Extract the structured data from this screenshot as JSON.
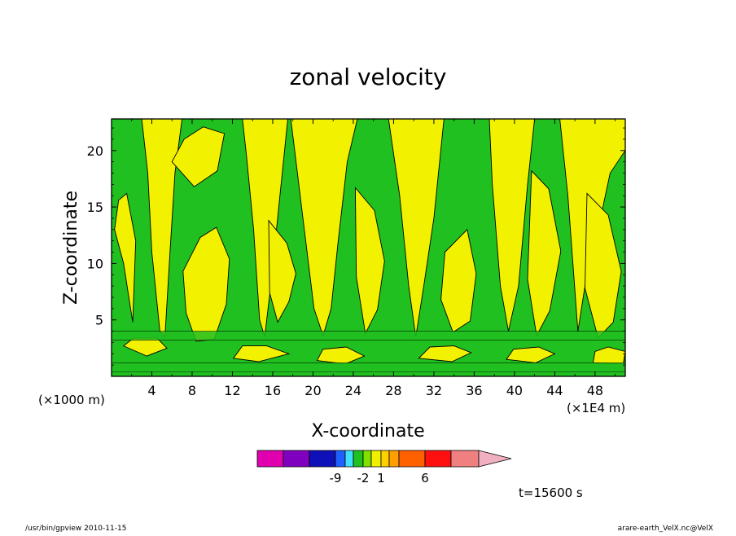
{
  "chart_data": {
    "type": "heatmap",
    "title": "zonal velocity",
    "xlabel": "X-coordinate",
    "ylabel": "Z-coordinate",
    "x_unit_left": "(×1000 m)",
    "x_unit_right": "(×1E4 m)",
    "x_ticks": [
      4,
      8,
      12,
      16,
      20,
      24,
      28,
      32,
      36,
      40,
      44,
      48
    ],
    "y_ticks": [
      5,
      10,
      15,
      20
    ],
    "xlim": [
      0,
      51
    ],
    "ylim": [
      0,
      22.8
    ],
    "contour_fields": {
      "fill": "#f2f200",
      "upper_green_patches": [
        [
          0,
          22.8,
          3,
          22.8,
          3.6,
          18,
          4,
          11,
          4.8,
          4,
          5.3,
          3.5,
          5.8,
          11,
          6.3,
          18,
          7,
          22.8,
          13,
          22.8,
          13.4,
          19.5,
          14.1,
          13,
          14.7,
          5,
          15.2,
          3.5,
          15.8,
          8,
          16.6,
          15,
          17.5,
          22.8,
          17.8,
          22.8,
          19,
          14,
          20.1,
          6,
          21,
          3.6,
          21.8,
          6,
          22.5,
          12,
          23.4,
          19,
          24.4,
          22.8,
          27.5,
          22.8,
          28.6,
          16,
          29.5,
          8,
          30.2,
          3.5,
          31,
          8,
          32,
          14,
          33,
          22.8,
          37.5,
          22.8,
          37.8,
          17,
          38.6,
          8,
          39.4,
          4,
          40.4,
          8,
          41.3,
          17,
          42,
          22.8,
          44.5,
          22.8,
          45.3,
          16,
          45.8,
          10,
          46.3,
          4,
          47,
          8,
          48.3,
          13,
          49.5,
          18,
          51,
          20,
          51,
          0,
          0,
          0
        ]
      ],
      "yellow_patches": [
        [
          0.3,
          13,
          1.2,
          10,
          2.1,
          4.8,
          2.4,
          12,
          1.5,
          16.2,
          0.7,
          15.6
        ],
        [
          6,
          19,
          8.2,
          16.8,
          10.5,
          18.2,
          11.2,
          21.5,
          9.1,
          22.1,
          7.2,
          21
        ],
        [
          7.1,
          9.3,
          8.8,
          12.3,
          10.4,
          13.2,
          11.7,
          10.4,
          11.4,
          6.4,
          10.2,
          3.3,
          8.4,
          3.1,
          7.4,
          5.6
        ],
        [
          15.6,
          13.8,
          17.4,
          11.8,
          18.3,
          9.1,
          17.6,
          6.6,
          16.5,
          4.8,
          15.7,
          7.4
        ],
        [
          24.2,
          16.7,
          26.1,
          14.7,
          27.1,
          10.2,
          26.4,
          5.9,
          25.2,
          3.8,
          24.3,
          8.8
        ],
        [
          33.1,
          11,
          35.3,
          13,
          36.2,
          9.1,
          35.6,
          4.9,
          33.9,
          3.9,
          32.7,
          6.8
        ],
        [
          41.7,
          18.2,
          43.4,
          16.6,
          44.6,
          11.1,
          43.5,
          5.8,
          42.2,
          3.6,
          41.3,
          8.6
        ],
        [
          47.2,
          16.2,
          49.3,
          14.3,
          50.6,
          9.3,
          49.8,
          4.8,
          48.3,
          3.4,
          47,
          7.8
        ],
        [
          1.2,
          2.7,
          3.5,
          1.8,
          5.5,
          2.5,
          4.5,
          3.4,
          2.2,
          3.4
        ],
        [
          12.1,
          1.6,
          14.6,
          1.3,
          17.6,
          2,
          15.4,
          2.7,
          13,
          2.7
        ],
        [
          20.4,
          1.4,
          23.2,
          1.1,
          25.1,
          1.8,
          23.3,
          2.6,
          21,
          2.4
        ],
        [
          30.5,
          1.6,
          33.8,
          1.3,
          35.7,
          2.1,
          34,
          2.7,
          31.6,
          2.6
        ],
        [
          39.2,
          1.5,
          42.1,
          1.2,
          44,
          2,
          42.4,
          2.6,
          39.9,
          2.4
        ],
        [
          47.8,
          1.2,
          50.8,
          1.1,
          51,
          2.2,
          49.3,
          2.6,
          48,
          2.2
        ]
      ],
      "lower_green_bands": [
        [
          0,
          0.4,
          51,
          0.4,
          51,
          1.2,
          0,
          1.2
        ],
        [
          0,
          3.2,
          51,
          3.2,
          51,
          4,
          0,
          4
        ]
      ]
    },
    "colorbar": {
      "colors": [
        "#e000b0",
        "#8000c0",
        "#1010b8",
        "#2060ff",
        "#40e0ff",
        "#20c020",
        "#80e000",
        "#f0f000",
        "#ffd000",
        "#ffa000",
        "#ff6000",
        "#ff1010",
        "#f08080",
        "#f0b0c0"
      ],
      "labels": [
        {
          "index": 2,
          "text": "-9"
        },
        {
          "index": 5,
          "text": "-2"
        },
        {
          "index": 7,
          "text": "1"
        },
        {
          "index": 10,
          "text": "6"
        }
      ]
    }
  },
  "time_label": "t=15600 s",
  "footer_left": "/usr/bin/gpview   2010-11-15",
  "footer_right": "arare-earth_VelX.nc@VelX"
}
